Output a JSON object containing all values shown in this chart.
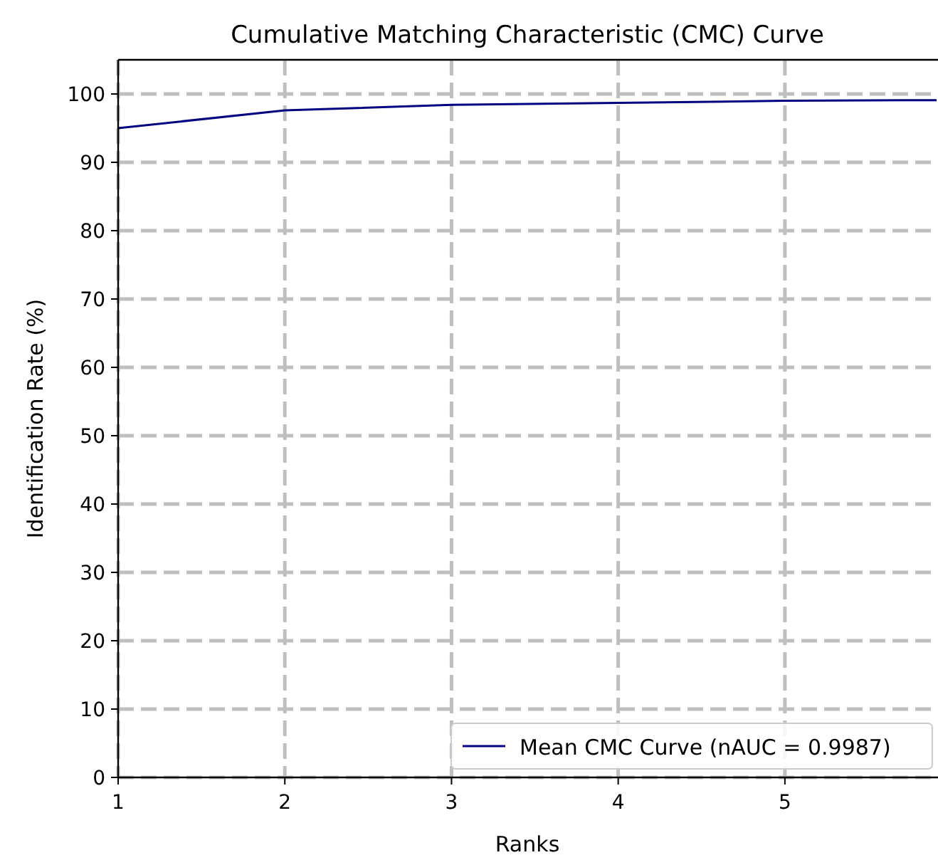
{
  "chart_data": {
    "type": "line",
    "title": "Cumulative Matching Characteristic (CMC) Curve",
    "xlabel": "Ranks",
    "ylabel": "Identification Rate (%)",
    "x": [
      1,
      2,
      3,
      4,
      5,
      5.91
    ],
    "series": [
      {
        "name": "Mean CMC Curve (nAUC = 0.9987)",
        "color": "#000080",
        "values": [
          95.0,
          97.6,
          98.4,
          98.7,
          99.0,
          99.1
        ]
      }
    ],
    "xlim": [
      1,
      5.91
    ],
    "xticks": [
      1,
      2,
      3,
      4,
      5
    ],
    "ylim": [
      0,
      105
    ],
    "yticks": [
      0,
      10,
      20,
      30,
      40,
      50,
      60,
      70,
      80,
      90,
      100
    ],
    "grid": true,
    "legend": "bottom right",
    "marker": "none",
    "line_style": "solid"
  }
}
